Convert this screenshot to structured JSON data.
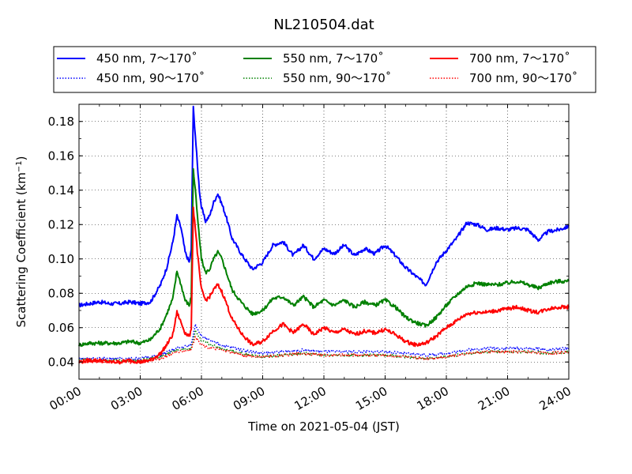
{
  "chart_data": {
    "type": "line",
    "title": "NL210504.dat",
    "xlabel": "Time on 2021-05-04 (JST)",
    "ylabel_main": "Scattering Coefficient (km",
    "ylabel_sup": "−1",
    "ylabel_tail": ")",
    "xlim": [
      "00:00",
      "24:00"
    ],
    "ylim": [
      0.03,
      0.19
    ],
    "grid": true,
    "legend_position": "top",
    "x_ticks": [
      "00:00",
      "03:00",
      "06:00",
      "09:00",
      "12:00",
      "15:00",
      "18:00",
      "21:00",
      "24:00"
    ],
    "y_ticks": [
      "0.04",
      "0.06",
      "0.08",
      "0.10",
      "0.12",
      "0.14",
      "0.16",
      "0.18"
    ],
    "x_unit": "hours",
    "series": [
      {
        "name": "450 nm, 7～170˚",
        "color": "#0000ff",
        "style": "solid",
        "x": [
          0,
          0.5,
          1,
          1.5,
          2,
          2.5,
          3,
          3.5,
          4,
          4.3,
          4.6,
          4.8,
          5.0,
          5.2,
          5.4,
          5.5,
          5.6,
          5.7,
          5.8,
          5.9,
          6.0,
          6.2,
          6.4,
          6.6,
          6.8,
          7.0,
          7.2,
          7.5,
          8,
          8.5,
          9,
          9.5,
          10,
          10.5,
          11,
          11.5,
          12,
          12.5,
          13,
          13.5,
          14,
          14.5,
          15,
          15.5,
          16,
          16.5,
          17,
          17.5,
          18,
          18.5,
          19,
          19.5,
          20,
          20.5,
          21,
          21.5,
          22,
          22.5,
          23,
          23.5,
          24
        ],
        "y": [
          0.073,
          0.074,
          0.075,
          0.074,
          0.074,
          0.075,
          0.074,
          0.075,
          0.085,
          0.095,
          0.11,
          0.125,
          0.118,
          0.104,
          0.098,
          0.105,
          0.188,
          0.172,
          0.155,
          0.14,
          0.13,
          0.122,
          0.125,
          0.133,
          0.138,
          0.132,
          0.125,
          0.112,
          0.102,
          0.094,
          0.098,
          0.108,
          0.11,
          0.102,
          0.108,
          0.1,
          0.106,
          0.103,
          0.108,
          0.102,
          0.106,
          0.103,
          0.108,
          0.102,
          0.095,
          0.09,
          0.085,
          0.098,
          0.105,
          0.112,
          0.121,
          0.12,
          0.117,
          0.118,
          0.117,
          0.118,
          0.117,
          0.111,
          0.116,
          0.117,
          0.119
        ]
      },
      {
        "name": "550 nm, 7～170˚",
        "color": "#008000",
        "style": "solid",
        "x": [
          0,
          0.5,
          1,
          1.5,
          2,
          2.5,
          3,
          3.5,
          4,
          4.3,
          4.6,
          4.8,
          5.0,
          5.2,
          5.4,
          5.5,
          5.6,
          5.7,
          5.8,
          5.9,
          6.0,
          6.2,
          6.4,
          6.6,
          6.8,
          7.0,
          7.2,
          7.5,
          8,
          8.5,
          9,
          9.5,
          10,
          10.5,
          11,
          11.5,
          12,
          12.5,
          13,
          13.5,
          14,
          14.5,
          15,
          15.5,
          16,
          16.5,
          17,
          17.5,
          18,
          18.5,
          19,
          19.5,
          20,
          20.5,
          21,
          21.5,
          22,
          22.5,
          23,
          23.5,
          24
        ],
        "y": [
          0.05,
          0.051,
          0.051,
          0.051,
          0.051,
          0.052,
          0.051,
          0.053,
          0.06,
          0.068,
          0.077,
          0.093,
          0.085,
          0.076,
          0.073,
          0.078,
          0.152,
          0.14,
          0.125,
          0.112,
          0.1,
          0.092,
          0.094,
          0.1,
          0.104,
          0.1,
          0.093,
          0.082,
          0.074,
          0.068,
          0.07,
          0.077,
          0.078,
          0.073,
          0.078,
          0.072,
          0.076,
          0.073,
          0.076,
          0.072,
          0.075,
          0.073,
          0.076,
          0.072,
          0.066,
          0.063,
          0.061,
          0.066,
          0.073,
          0.079,
          0.084,
          0.086,
          0.085,
          0.085,
          0.086,
          0.087,
          0.085,
          0.083,
          0.086,
          0.087,
          0.087
        ]
      },
      {
        "name": "700 nm, 7～170˚",
        "color": "#ff0000",
        "style": "solid",
        "x": [
          0,
          0.5,
          1,
          1.5,
          2,
          2.5,
          3,
          3.5,
          4,
          4.3,
          4.6,
          4.8,
          5.0,
          5.2,
          5.4,
          5.5,
          5.6,
          5.7,
          5.8,
          5.9,
          6.0,
          6.2,
          6.4,
          6.6,
          6.8,
          7.0,
          7.2,
          7.5,
          8,
          8.5,
          9,
          9.5,
          10,
          10.5,
          11,
          11.5,
          12,
          12.5,
          13,
          13.5,
          14,
          14.5,
          15,
          15.5,
          16,
          16.5,
          17,
          17.5,
          18,
          18.5,
          19,
          19.5,
          20,
          20.5,
          21,
          21.5,
          22,
          22.5,
          23,
          23.5,
          24
        ],
        "y": [
          0.04,
          0.041,
          0.041,
          0.04,
          0.04,
          0.041,
          0.04,
          0.041,
          0.045,
          0.05,
          0.056,
          0.069,
          0.063,
          0.057,
          0.055,
          0.058,
          0.13,
          0.118,
          0.104,
          0.092,
          0.082,
          0.076,
          0.078,
          0.082,
          0.085,
          0.081,
          0.075,
          0.065,
          0.056,
          0.05,
          0.052,
          0.058,
          0.062,
          0.057,
          0.062,
          0.056,
          0.06,
          0.057,
          0.059,
          0.056,
          0.058,
          0.057,
          0.059,
          0.056,
          0.052,
          0.05,
          0.051,
          0.055,
          0.06,
          0.064,
          0.068,
          0.069,
          0.069,
          0.07,
          0.071,
          0.072,
          0.07,
          0.069,
          0.071,
          0.072,
          0.072
        ]
      },
      {
        "name": "450 nm, 90～170˚",
        "color": "#0000ff",
        "style": "dotted",
        "x": [
          0,
          1,
          2,
          3,
          4,
          4.8,
          5.5,
          5.7,
          6,
          6.5,
          7,
          8,
          9,
          10,
          11,
          12,
          13,
          14,
          15,
          16,
          17,
          18,
          19,
          20,
          21,
          22,
          23,
          24
        ],
        "y": [
          0.042,
          0.042,
          0.042,
          0.042,
          0.044,
          0.048,
          0.05,
          0.062,
          0.055,
          0.052,
          0.05,
          0.047,
          0.045,
          0.046,
          0.047,
          0.046,
          0.046,
          0.046,
          0.046,
          0.045,
          0.044,
          0.045,
          0.047,
          0.048,
          0.048,
          0.048,
          0.047,
          0.048
        ]
      },
      {
        "name": "550 nm, 90～170˚",
        "color": "#008000",
        "style": "dotted",
        "x": [
          0,
          1,
          2,
          3,
          4,
          4.8,
          5.5,
          5.7,
          6,
          6.5,
          7,
          8,
          9,
          10,
          11,
          12,
          13,
          14,
          15,
          16,
          17,
          18,
          19,
          20,
          21,
          22,
          23,
          24
        ],
        "y": [
          0.041,
          0.041,
          0.041,
          0.041,
          0.043,
          0.047,
          0.048,
          0.058,
          0.052,
          0.05,
          0.048,
          0.045,
          0.043,
          0.044,
          0.045,
          0.044,
          0.044,
          0.044,
          0.044,
          0.043,
          0.042,
          0.043,
          0.045,
          0.046,
          0.046,
          0.046,
          0.045,
          0.046
        ]
      },
      {
        "name": "700 nm, 90～170˚",
        "color": "#ff0000",
        "style": "dotted",
        "x": [
          0,
          1,
          2,
          3,
          4,
          4.8,
          5.5,
          5.7,
          6,
          6.5,
          7,
          8,
          9,
          10,
          11,
          12,
          13,
          14,
          15,
          16,
          17,
          18,
          19,
          20,
          21,
          22,
          23,
          24
        ],
        "y": [
          0.04,
          0.04,
          0.04,
          0.04,
          0.042,
          0.046,
          0.047,
          0.055,
          0.05,
          0.048,
          0.047,
          0.044,
          0.043,
          0.044,
          0.045,
          0.044,
          0.044,
          0.044,
          0.044,
          0.043,
          0.042,
          0.043,
          0.045,
          0.046,
          0.046,
          0.046,
          0.045,
          0.046
        ]
      }
    ]
  }
}
